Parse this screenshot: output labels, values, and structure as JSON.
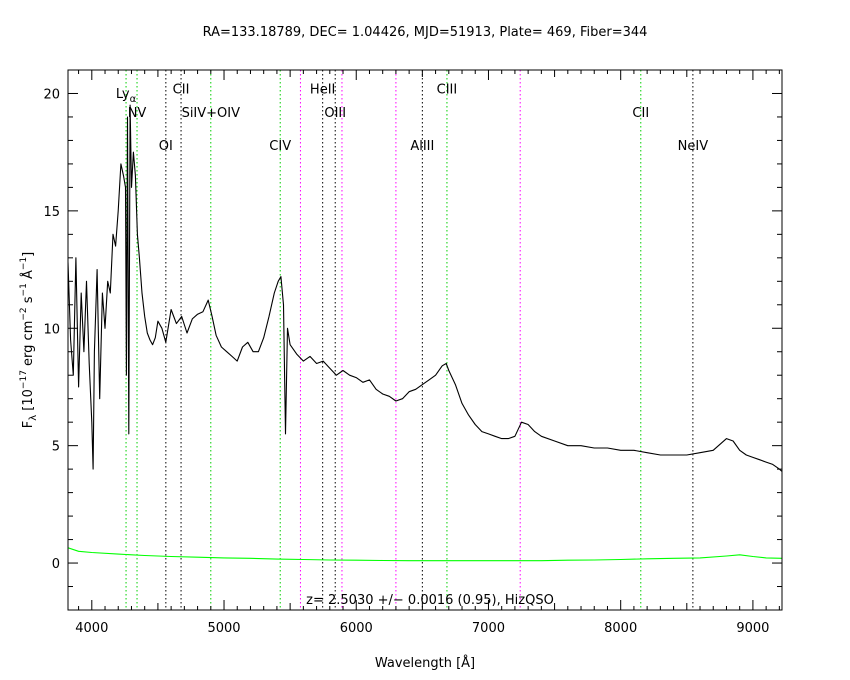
{
  "chart_data": {
    "type": "line",
    "title": "RA=133.18789, DEC= 1.04426, MJD=51913, Plate= 469, Fiber=344",
    "xlabel": "Wavelength [Å]",
    "ylabel_main": "F",
    "ylabel_sub": "λ",
    "ylabel_bracket_open": "[10",
    "ylabel_exp1": "−17",
    "ylabel_erg": "erg cm",
    "ylabel_exp2": "−2",
    "ylabel_s": "s",
    "ylabel_exp3": "−1",
    "ylabel_ang": "Å",
    "ylabel_exp4": "−1",
    "ylabel_close": "]",
    "annotation": "z= 2.5030 +/− 0.0016 (0.95), HizQSO",
    "xlim": [
      3820,
      9220
    ],
    "ylim": [
      -2,
      21
    ],
    "xticks": [
      4000,
      5000,
      6000,
      7000,
      8000,
      9000
    ],
    "xtick_labels": [
      "4000",
      "5000",
      "6000",
      "7000",
      "8000",
      "9000"
    ],
    "yticks": [
      0,
      5,
      10,
      15,
      20
    ],
    "ytick_labels": [
      "0",
      "5",
      "10",
      "15",
      "20"
    ],
    "series": [
      {
        "color": "#000000",
        "x": [
          3820,
          3840,
          3860,
          3880,
          3900,
          3920,
          3940,
          3960,
          3980,
          4000,
          4010,
          4020,
          4040,
          4060,
          4080,
          4100,
          4120,
          4140,
          4160,
          4180,
          4200,
          4220,
          4240,
          4255,
          4262,
          4270,
          4280,
          4290,
          4300,
          4315,
          4330,
          4345,
          4360,
          4380,
          4400,
          4420,
          4440,
          4460,
          4480,
          4500,
          4530,
          4560,
          4600,
          4640,
          4680,
          4720,
          4760,
          4800,
          4840,
          4880,
          4910,
          4940,
          4980,
          5020,
          5060,
          5100,
          5140,
          5180,
          5220,
          5260,
          5300,
          5340,
          5380,
          5410,
          5430,
          5450,
          5465,
          5480,
          5500,
          5550,
          5600,
          5650,
          5700,
          5750,
          5800,
          5850,
          5900,
          5950,
          6000,
          6050,
          6100,
          6150,
          6200,
          6250,
          6300,
          6350,
          6400,
          6450,
          6500,
          6550,
          6600,
          6650,
          6680,
          6700,
          6750,
          6800,
          6850,
          6900,
          6950,
          7000,
          7050,
          7100,
          7150,
          7200,
          7250,
          7300,
          7350,
          7400,
          7500,
          7600,
          7700,
          7800,
          7900,
          8000,
          8100,
          8200,
          8300,
          8400,
          8500,
          8600,
          8700,
          8800,
          8850,
          8900,
          8950,
          9000,
          9050,
          9100,
          9150,
          9200,
          9220
        ],
        "y": [
          12.8,
          9.5,
          8.0,
          13.0,
          7.5,
          11.5,
          9.0,
          12.0,
          8.5,
          6.0,
          4.0,
          9.0,
          12.5,
          7.0,
          11.5,
          10.0,
          12.0,
          11.5,
          14.0,
          13.5,
          15.0,
          17.0,
          16.5,
          16.0,
          8.0,
          19.0,
          5.5,
          19.5,
          16.0,
          17.5,
          16.5,
          14.0,
          13.0,
          11.5,
          10.5,
          9.8,
          9.5,
          9.3,
          9.6,
          10.3,
          10.0,
          9.4,
          10.8,
          10.2,
          10.5,
          9.8,
          10.4,
          10.6,
          10.7,
          11.2,
          10.5,
          9.7,
          9.2,
          9.0,
          8.8,
          8.6,
          9.2,
          9.4,
          9.0,
          9.0,
          9.6,
          10.5,
          11.5,
          12.0,
          12.2,
          11.0,
          5.5,
          10.0,
          9.3,
          8.9,
          8.6,
          8.8,
          8.5,
          8.6,
          8.3,
          8.0,
          8.2,
          8.0,
          7.9,
          7.7,
          7.8,
          7.4,
          7.2,
          7.1,
          6.9,
          7.0,
          7.3,
          7.4,
          7.6,
          7.8,
          8.0,
          8.4,
          8.5,
          8.2,
          7.6,
          6.8,
          6.3,
          5.9,
          5.6,
          5.5,
          5.4,
          5.3,
          5.3,
          5.4,
          6.0,
          5.9,
          5.6,
          5.4,
          5.2,
          5.0,
          5.0,
          4.9,
          4.9,
          4.8,
          4.8,
          4.7,
          4.6,
          4.6,
          4.6,
          4.7,
          4.8,
          5.3,
          5.2,
          4.8,
          4.6,
          4.5,
          4.4,
          4.3,
          4.2,
          4.0,
          3.9
        ]
      },
      {
        "color": "#00ff00",
        "x": [
          3820,
          3900,
          4000,
          4200,
          4400,
          4600,
          4800,
          5000,
          5200,
          5400,
          5600,
          5800,
          6000,
          6200,
          6400,
          6600,
          6800,
          7000,
          7200,
          7400,
          7600,
          7800,
          8000,
          8200,
          8400,
          8600,
          8800,
          8900,
          9000,
          9100,
          9220
        ],
        "y": [
          0.65,
          0.5,
          0.45,
          0.38,
          0.32,
          0.28,
          0.25,
          0.22,
          0.2,
          0.17,
          0.15,
          0.13,
          0.12,
          0.11,
          0.1,
          0.1,
          0.1,
          0.1,
          0.1,
          0.1,
          0.12,
          0.13,
          0.15,
          0.18,
          0.2,
          0.22,
          0.3,
          0.35,
          0.28,
          0.22,
          0.2
        ]
      }
    ],
    "line_markers": [
      {
        "wavelength": 4259,
        "color": "#00d000",
        "label": "Ly",
        "label_sub": "α",
        "label_y": 19.8
      },
      {
        "wavelength": 4342,
        "color": "#00d000",
        "label": "NV",
        "label_y": 19.0
      },
      {
        "wavelength": 4560,
        "color": "#000000",
        "label": "OI",
        "label_y": 17.6
      },
      {
        "wavelength": 4675,
        "color": "#000000",
        "label": "CII",
        "label_y": 20.0
      },
      {
        "wavelength": 4900,
        "color": "#00d000",
        "label": "SiIV+OIV",
        "label_y": 19.0
      },
      {
        "wavelength": 5425,
        "color": "#00d000",
        "label": "CIV",
        "label_y": 17.6
      },
      {
        "wavelength": 5578,
        "color": "#ff00ff",
        "label": ""
      },
      {
        "wavelength": 5746,
        "color": "#000000",
        "label": "HeII",
        "label_y": 20.0
      },
      {
        "wavelength": 5841,
        "color": "#000000",
        "label": "OIII",
        "label_y": 19.0
      },
      {
        "wavelength": 5892,
        "color": "#ff00ff",
        "label": ""
      },
      {
        "wavelength": 6300,
        "color": "#ff00ff",
        "label": ""
      },
      {
        "wavelength": 6500,
        "color": "#000000",
        "label": "AlIII",
        "label_y": 17.6
      },
      {
        "wavelength": 6686,
        "color": "#00d000",
        "label": "CIII",
        "label_y": 20.0
      },
      {
        "wavelength": 7240,
        "color": "#ff00ff",
        "label": ""
      },
      {
        "wavelength": 8152,
        "color": "#00d000",
        "label": "CII",
        "label_y": 19.0
      },
      {
        "wavelength": 8546,
        "color": "#000000",
        "label": "NeIV",
        "label_y": 17.6
      }
    ]
  }
}
